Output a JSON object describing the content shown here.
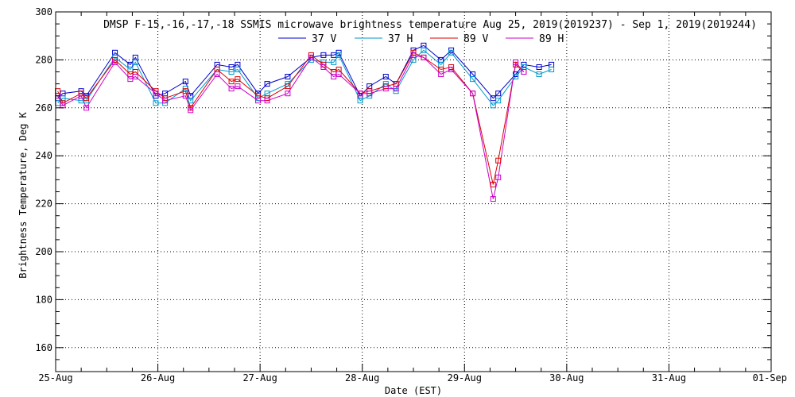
{
  "chart_data": {
    "type": "line",
    "title": "DMSP F-15,-16,-17,-18 SSMIS microwave brightness temperature Aug 25, 2019(2019237) - Sep  1, 2019(2019244)",
    "xlabel": "Date (EST)",
    "ylabel": "Brightness Temperature, Deg K",
    "x_tick_labels": [
      "25-Aug",
      "26-Aug",
      "27-Aug",
      "28-Aug",
      "29-Aug",
      "30-Aug",
      "31-Aug",
      "01-Sep"
    ],
    "y_ticks": [
      160,
      180,
      200,
      220,
      240,
      260,
      280,
      300
    ],
    "ylim": [
      150,
      300
    ],
    "xlim_days": [
      0,
      7
    ],
    "grid": true,
    "legend_position": "top-center",
    "x_days": [
      0.02,
      0.07,
      0.25,
      0.3,
      0.58,
      0.73,
      0.78,
      0.98,
      1.07,
      1.27,
      1.32,
      1.58,
      1.72,
      1.78,
      1.98,
      2.07,
      2.27,
      2.5,
      2.62,
      2.72,
      2.77,
      2.98,
      3.07,
      3.23,
      3.33,
      3.5,
      3.6,
      3.77,
      3.87,
      4.08,
      4.28,
      4.33,
      4.5,
      4.58,
      4.73,
      4.85
    ],
    "series": [
      {
        "name": "37 V",
        "color": "#0000cc",
        "values": [
          264,
          266,
          267,
          265,
          283,
          278,
          281,
          265,
          266,
          271,
          265,
          278,
          277,
          278,
          266,
          270,
          273,
          281,
          282,
          282,
          283,
          265,
          269,
          273,
          270,
          284,
          286,
          280,
          284,
          274,
          264,
          266,
          274,
          278,
          277,
          278
        ]
      },
      {
        "name": "37 H",
        "color": "#0099cc",
        "values": [
          262,
          264,
          263,
          263,
          281,
          276,
          279,
          262,
          262,
          268,
          263,
          276,
          275,
          276,
          264,
          266,
          270,
          280,
          279,
          279,
          282,
          263,
          265,
          270,
          267,
          280,
          284,
          278,
          283,
          272,
          261,
          263,
          273,
          277,
          274,
          276
        ]
      },
      {
        "name": "89 V",
        "color": "#dd0000",
        "values": [
          267,
          262,
          266,
          264,
          280,
          274,
          275,
          267,
          264,
          267,
          260,
          276,
          271,
          272,
          265,
          264,
          269,
          282,
          278,
          275,
          276,
          266,
          267,
          269,
          270,
          283,
          281,
          276,
          277,
          266,
          228,
          238,
          278,
          275,
          null,
          null
        ]
      },
      {
        "name": "89 H",
        "color": "#cc00cc",
        "values": [
          265,
          261,
          265,
          260,
          279,
          272,
          273,
          266,
          263,
          265,
          259,
          274,
          268,
          269,
          263,
          263,
          266,
          281,
          277,
          273,
          274,
          266,
          266,
          268,
          268,
          282,
          281,
          274,
          276,
          266,
          222,
          231,
          279,
          275,
          null,
          null
        ]
      }
    ]
  }
}
